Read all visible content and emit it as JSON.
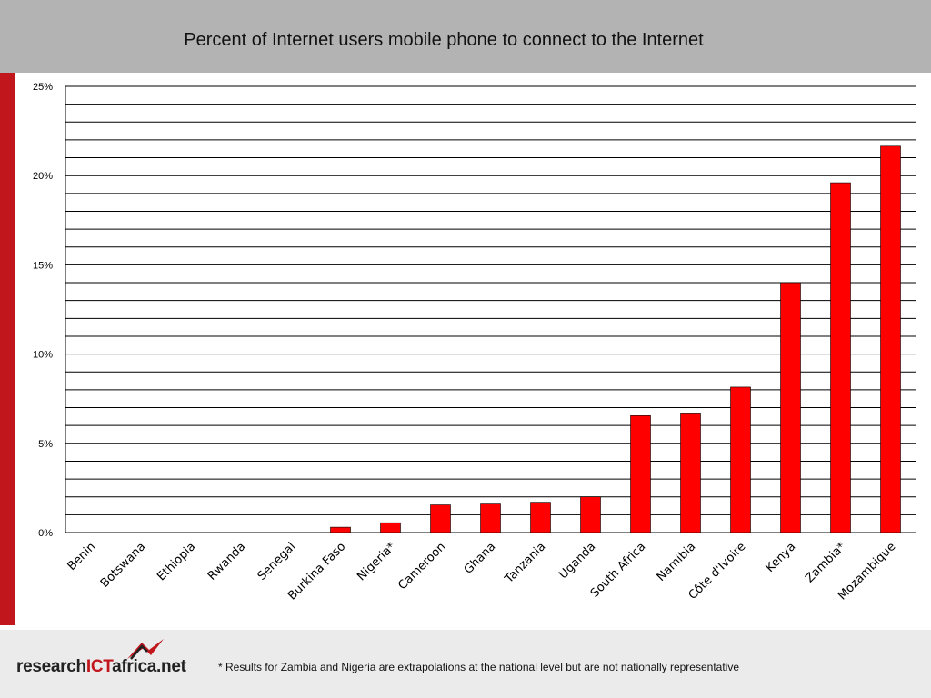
{
  "chart_data": {
    "type": "bar",
    "title": "Percent of Internet users mobile phone to connect to the Internet",
    "xlabel": "",
    "ylabel": "",
    "categories": [
      "Benin",
      "Botswana",
      "Ethiopia",
      "Rwanda",
      "Senegal",
      "Burkina Faso",
      "Nigeria*",
      "Cameroon",
      "Ghana",
      "Tanzania",
      "Uganda",
      "South Africa",
      "Namibia",
      "Côte d'Ivoire",
      "Kenya",
      "Zambia*",
      "Mozambique"
    ],
    "values": [
      0,
      0,
      0,
      0,
      0,
      0.3,
      0.55,
      1.55,
      1.65,
      1.7,
      2.0,
      6.55,
      6.7,
      8.15,
      14.0,
      19.6,
      21.65
    ],
    "ylim": [
      0,
      25
    ],
    "yticks": [
      0,
      5,
      10,
      15,
      20,
      25
    ],
    "ytick_labels": [
      "0%",
      "5%",
      "10%",
      "15%",
      "20%",
      "25%"
    ],
    "grid": true,
    "legend": "none",
    "bar_color": "#ff0000"
  },
  "footer": {
    "logo_prefix": "research",
    "logo_ict": "ICT",
    "logo_suffix": "africa.net",
    "footnote": "* Results for Zambia and Nigeria are extrapolations at the national level but are not nationally representative"
  },
  "colors": {
    "title_bar": "#b3b3b3",
    "accent": "#c0161c",
    "footer": "#ebebeb"
  }
}
